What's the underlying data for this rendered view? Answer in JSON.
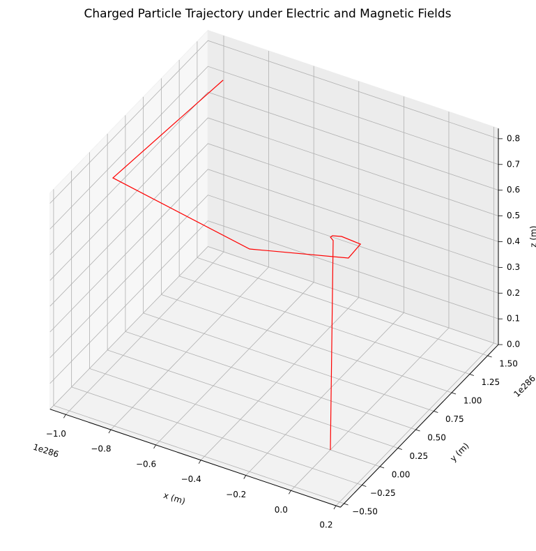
{
  "chart_data": {
    "type": "line3d",
    "title": "Charged Particle Trajectory under Electric and Magnetic Fields",
    "x": [
      0,
      -0.002,
      -0.022,
      -0.02,
      0.013,
      0.101,
      0.106,
      -0.254,
      -0.942,
      -0.891
    ],
    "y": [
      0,
      0.045,
      0.07,
      0.091,
      0.115,
      0.102,
      -0.081,
      -0.329,
      -0.075,
      1.3
    ],
    "z": [
      0,
      0.8,
      0.8,
      0.8,
      0.8,
      0.8,
      0.8,
      0.8,
      0.8,
      0.8
    ],
    "color": "#ff0000",
    "xlim": [
      -1.07,
      0.22
    ],
    "ylim": [
      -0.55,
      1.65
    ],
    "zlim": [
      0,
      0.84
    ],
    "xticks": [
      {
        "value": -1,
        "label": "−1.0"
      },
      {
        "value": -0.8,
        "label": "−0.8"
      },
      {
        "value": -0.6,
        "label": "−0.6"
      },
      {
        "value": -0.4,
        "label": "−0.4"
      },
      {
        "value": -0.2,
        "label": "−0.2"
      },
      {
        "value": 0,
        "label": "0.0"
      },
      0.2
    ],
    "yticks": [
      {
        "value": -0.5,
        "label": "−0.50"
      },
      {
        "value": -0.25,
        "label": "−0.25"
      },
      {
        "value": 0,
        "label": "0.00"
      },
      0.25,
      {
        "value": 0.5,
        "label": "0.50"
      },
      0.75,
      {
        "value": 1,
        "label": "1.00"
      },
      1.25,
      {
        "value": 1.5,
        "label": "1.50"
      }
    ],
    "zticks": [
      {
        "value": 0,
        "label": "0.0"
      },
      0.1,
      0.2,
      0.3,
      0.4,
      0.5,
      0.6,
      0.7,
      0.8
    ],
    "xlabel": "x (m)",
    "ylabel": "y (m)",
    "zlabel": "z (m)",
    "x_offset": "1e286",
    "y_offset": "1e286",
    "grid": true
  }
}
